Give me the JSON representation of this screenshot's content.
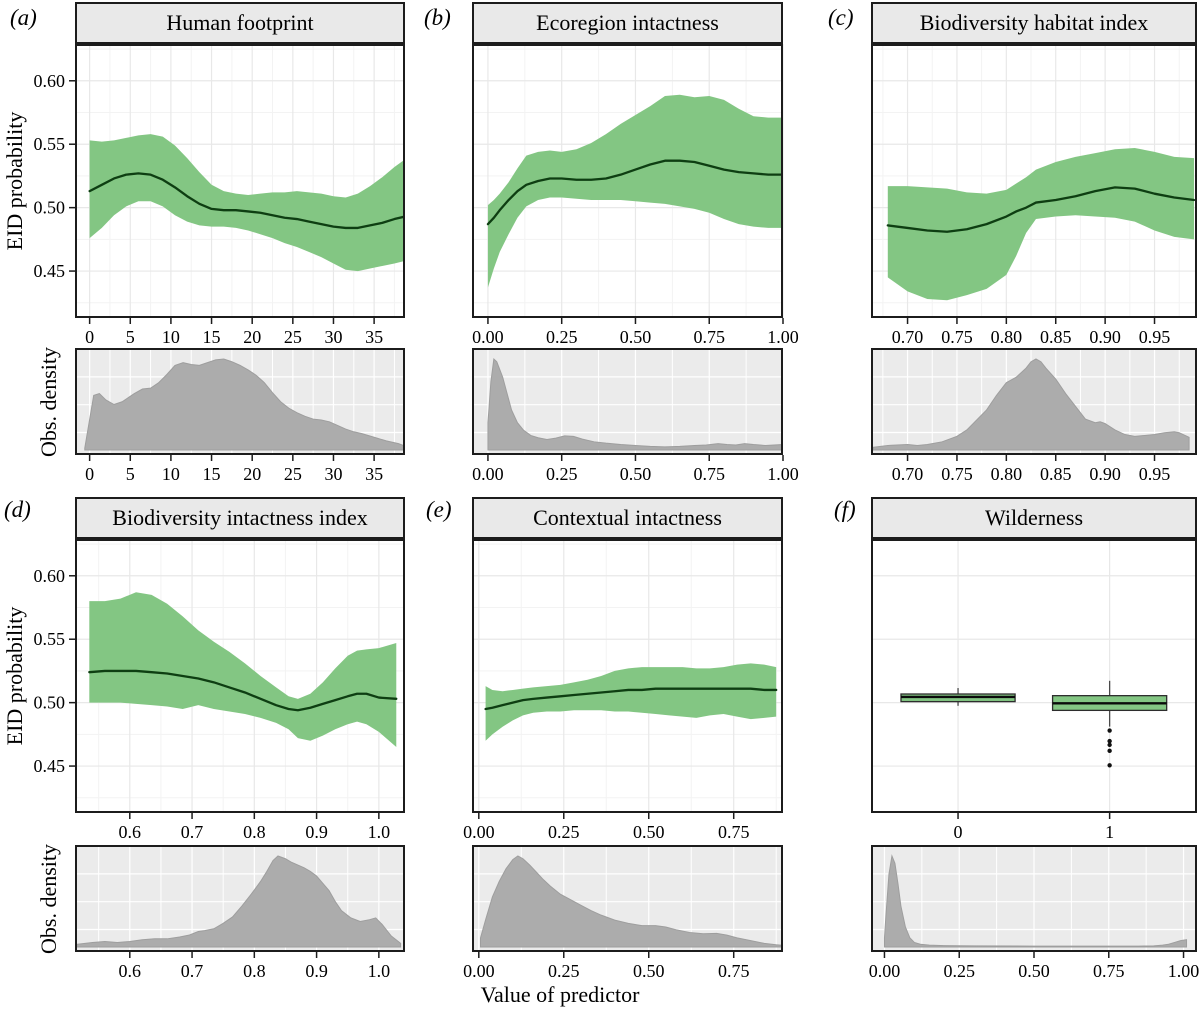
{
  "figure": {
    "xlabel": "Value of predictor",
    "ylabel_main": "EID probability",
    "ylabel_density": "Obs. density",
    "ylim": [
      0.413,
      0.629
    ],
    "yticks": [
      0.45,
      0.5,
      0.55,
      0.6
    ],
    "ytick_labels": [
      "0.45",
      "0.50",
      "0.55",
      "0.60"
    ],
    "colors": {
      "band": "#83c683",
      "line": "#0e3e12",
      "density_fill": "#acacac",
      "density_edge": "#9e9e9e",
      "density_bg": "#ebebeb",
      "grid_major": "#e8e8e8",
      "grid_minor": "#f3f3f3",
      "density_grid": "#ffffff",
      "border": "#1c1c1c",
      "strip_bg": "#e9e9e9",
      "tick": "#1c1c1c"
    }
  },
  "chart_data": [
    {
      "letter": "(a)",
      "title": "Human footprint",
      "type": "line",
      "xlim": [
        -1.8,
        38.8
      ],
      "xticks": [
        0,
        5,
        10,
        15,
        20,
        25,
        30,
        35
      ],
      "xtick_labels": [
        "0",
        "5",
        "10",
        "15",
        "20",
        "25",
        "30",
        "35"
      ],
      "smooth": {
        "x": [
          0,
          1.5,
          3,
          4.5,
          6,
          7.5,
          9,
          10.5,
          12,
          13.5,
          15,
          16.5,
          18,
          19.5,
          21,
          22.5,
          24,
          25.5,
          27,
          28.5,
          30,
          31.5,
          33,
          34.5,
          36,
          37.5,
          38.8
        ],
        "y": [
          0.513,
          0.518,
          0.523,
          0.526,
          0.527,
          0.526,
          0.522,
          0.516,
          0.509,
          0.503,
          0.499,
          0.498,
          0.498,
          0.497,
          0.496,
          0.494,
          0.492,
          0.491,
          0.489,
          0.487,
          0.485,
          0.484,
          0.484,
          0.486,
          0.488,
          0.491,
          0.493
        ],
        "lo": [
          0.476,
          0.484,
          0.494,
          0.501,
          0.505,
          0.505,
          0.501,
          0.494,
          0.489,
          0.486,
          0.485,
          0.485,
          0.484,
          0.482,
          0.479,
          0.476,
          0.472,
          0.469,
          0.465,
          0.461,
          0.456,
          0.451,
          0.45,
          0.452,
          0.454,
          0.456,
          0.458
        ],
        "hi": [
          0.553,
          0.552,
          0.553,
          0.555,
          0.557,
          0.558,
          0.556,
          0.549,
          0.539,
          0.528,
          0.518,
          0.513,
          0.511,
          0.51,
          0.511,
          0.512,
          0.512,
          0.513,
          0.512,
          0.511,
          0.509,
          0.508,
          0.511,
          0.517,
          0.524,
          0.532,
          0.538
        ]
      },
      "density": {
        "x": [
          -0.6,
          0.5,
          1.2,
          2,
          3,
          4,
          5.5,
          6.5,
          7.5,
          8.5,
          9.5,
          10.5,
          11.5,
          12.5,
          13.5,
          14.5,
          15.5,
          16.5,
          17.5,
          18.5,
          19.5,
          20.5,
          21.5,
          22.5,
          23.5,
          24.5,
          25.5,
          26.5,
          27.5,
          28.5,
          29.5,
          30.5,
          31.5,
          32.5,
          33.5,
          35,
          36.5,
          38,
          38.6
        ],
        "v": [
          0.02,
          0.6,
          0.62,
          0.55,
          0.5,
          0.53,
          0.62,
          0.67,
          0.68,
          0.74,
          0.83,
          0.93,
          0.96,
          0.94,
          0.93,
          0.96,
          0.99,
          1.0,
          0.97,
          0.93,
          0.88,
          0.82,
          0.74,
          0.63,
          0.53,
          0.46,
          0.41,
          0.37,
          0.34,
          0.33,
          0.31,
          0.27,
          0.23,
          0.2,
          0.18,
          0.14,
          0.1,
          0.07,
          0.05
        ]
      }
    },
    {
      "letter": "(b)",
      "title": "Ecoregion intactness",
      "type": "line",
      "xlim": [
        -0.054,
        1.0
      ],
      "xticks": [
        0,
        0.25,
        0.5,
        0.75,
        1.0
      ],
      "xtick_labels": [
        "0.00",
        "0.25",
        "0.50",
        "0.75",
        "1.00"
      ],
      "smooth": {
        "x": [
          0,
          0.02,
          0.04,
          0.07,
          0.1,
          0.13,
          0.17,
          0.21,
          0.25,
          0.3,
          0.35,
          0.4,
          0.45,
          0.5,
          0.55,
          0.6,
          0.65,
          0.7,
          0.75,
          0.8,
          0.85,
          0.9,
          0.95,
          1.0
        ],
        "y": [
          0.487,
          0.492,
          0.498,
          0.506,
          0.513,
          0.518,
          0.521,
          0.523,
          0.523,
          0.522,
          0.522,
          0.523,
          0.526,
          0.53,
          0.534,
          0.537,
          0.537,
          0.536,
          0.533,
          0.53,
          0.528,
          0.527,
          0.526,
          0.526
        ],
        "lo": [
          0.437,
          0.452,
          0.465,
          0.479,
          0.492,
          0.501,
          0.506,
          0.508,
          0.508,
          0.507,
          0.506,
          0.506,
          0.506,
          0.505,
          0.504,
          0.503,
          0.501,
          0.499,
          0.496,
          0.491,
          0.487,
          0.485,
          0.484,
          0.484
        ],
        "hi": [
          0.502,
          0.506,
          0.511,
          0.52,
          0.531,
          0.541,
          0.544,
          0.545,
          0.544,
          0.546,
          0.551,
          0.558,
          0.566,
          0.573,
          0.58,
          0.588,
          0.589,
          0.587,
          0.588,
          0.585,
          0.578,
          0.572,
          0.571,
          0.571
        ]
      },
      "density": {
        "x": [
          0.0,
          0.01,
          0.02,
          0.03,
          0.05,
          0.065,
          0.08,
          0.1,
          0.12,
          0.145,
          0.17,
          0.2,
          0.23,
          0.26,
          0.29,
          0.32,
          0.36,
          0.4,
          0.45,
          0.5,
          0.55,
          0.6,
          0.65,
          0.7,
          0.74,
          0.78,
          0.81,
          0.84,
          0.87,
          0.9,
          0.94,
          0.97,
          1.0
        ],
        "v": [
          0.3,
          0.75,
          1.0,
          0.97,
          0.8,
          0.62,
          0.44,
          0.3,
          0.22,
          0.16,
          0.135,
          0.115,
          0.13,
          0.155,
          0.15,
          0.12,
          0.09,
          0.075,
          0.06,
          0.05,
          0.04,
          0.035,
          0.04,
          0.05,
          0.055,
          0.07,
          0.06,
          0.055,
          0.07,
          0.06,
          0.05,
          0.055,
          0.06
        ]
      }
    },
    {
      "letter": "(c)",
      "title": "Biodiversity habitat index",
      "type": "line",
      "xlim": [
        0.663,
        0.993
      ],
      "xticks": [
        0.7,
        0.75,
        0.8,
        0.85,
        0.9,
        0.95
      ],
      "xtick_labels": [
        "0.70",
        "0.75",
        "0.80",
        "0.85",
        "0.90",
        "0.95"
      ],
      "smooth": {
        "x": [
          0.68,
          0.7,
          0.72,
          0.74,
          0.76,
          0.78,
          0.8,
          0.81,
          0.82,
          0.83,
          0.85,
          0.87,
          0.89,
          0.91,
          0.93,
          0.95,
          0.97,
          0.99
        ],
        "y": [
          0.486,
          0.484,
          0.482,
          0.481,
          0.483,
          0.487,
          0.493,
          0.497,
          0.5,
          0.504,
          0.506,
          0.509,
          0.513,
          0.516,
          0.515,
          0.511,
          0.508,
          0.506
        ],
        "lo": [
          0.445,
          0.434,
          0.428,
          0.427,
          0.431,
          0.436,
          0.447,
          0.462,
          0.48,
          0.491,
          0.493,
          0.494,
          0.493,
          0.492,
          0.489,
          0.482,
          0.477,
          0.475
        ],
        "hi": [
          0.517,
          0.517,
          0.516,
          0.515,
          0.512,
          0.511,
          0.514,
          0.519,
          0.524,
          0.53,
          0.536,
          0.54,
          0.543,
          0.546,
          0.547,
          0.544,
          0.54,
          0.539
        ]
      },
      "density": {
        "x": [
          0.665,
          0.68,
          0.7,
          0.71,
          0.72,
          0.735,
          0.75,
          0.76,
          0.77,
          0.78,
          0.79,
          0.8,
          0.81,
          0.82,
          0.825,
          0.83,
          0.835,
          0.84,
          0.85,
          0.86,
          0.87,
          0.88,
          0.89,
          0.895,
          0.9,
          0.91,
          0.92,
          0.93,
          0.94,
          0.95,
          0.96,
          0.97,
          0.975,
          0.985
        ],
        "v": [
          0.03,
          0.05,
          0.06,
          0.05,
          0.06,
          0.09,
          0.15,
          0.22,
          0.33,
          0.44,
          0.6,
          0.74,
          0.8,
          0.9,
          0.97,
          1.0,
          0.97,
          0.9,
          0.78,
          0.62,
          0.48,
          0.34,
          0.3,
          0.31,
          0.29,
          0.22,
          0.17,
          0.15,
          0.16,
          0.17,
          0.19,
          0.2,
          0.19,
          0.14
        ]
      }
    },
    {
      "letter": "(d)",
      "title": "Biodiversity intactness index",
      "type": "line",
      "xlim": [
        0.512,
        1.042
      ],
      "xticks": [
        0.6,
        0.7,
        0.8,
        0.9,
        1.0
      ],
      "xtick_labels": [
        "0.6",
        "0.7",
        "0.8",
        "0.9",
        "1.0"
      ],
      "smooth": {
        "x": [
          0.535,
          0.56,
          0.585,
          0.61,
          0.635,
          0.66,
          0.685,
          0.71,
          0.735,
          0.76,
          0.785,
          0.81,
          0.835,
          0.855,
          0.87,
          0.89,
          0.91,
          0.93,
          0.95,
          0.965,
          0.98,
          1.0,
          1.028
        ],
        "y": [
          0.524,
          0.525,
          0.525,
          0.525,
          0.524,
          0.523,
          0.521,
          0.519,
          0.516,
          0.512,
          0.508,
          0.503,
          0.498,
          0.495,
          0.494,
          0.496,
          0.499,
          0.502,
          0.505,
          0.507,
          0.507,
          0.504,
          0.503
        ],
        "lo": [
          0.5,
          0.5,
          0.5,
          0.499,
          0.498,
          0.497,
          0.495,
          0.498,
          0.495,
          0.493,
          0.491,
          0.488,
          0.484,
          0.479,
          0.472,
          0.47,
          0.474,
          0.479,
          0.483,
          0.485,
          0.483,
          0.477,
          0.465
        ],
        "hi": [
          0.58,
          0.58,
          0.582,
          0.587,
          0.585,
          0.578,
          0.568,
          0.557,
          0.548,
          0.54,
          0.531,
          0.521,
          0.512,
          0.505,
          0.503,
          0.507,
          0.516,
          0.527,
          0.537,
          0.541,
          0.542,
          0.543,
          0.547
        ]
      },
      "density": {
        "x": [
          0.515,
          0.54,
          0.56,
          0.58,
          0.6,
          0.62,
          0.64,
          0.66,
          0.68,
          0.695,
          0.71,
          0.72,
          0.735,
          0.75,
          0.765,
          0.78,
          0.795,
          0.81,
          0.82,
          0.83,
          0.838,
          0.85,
          0.86,
          0.87,
          0.88,
          0.89,
          0.9,
          0.91,
          0.92,
          0.93,
          0.94,
          0.955,
          0.97,
          0.985,
          0.995,
          1.005,
          1.02,
          1.035
        ],
        "v": [
          0.03,
          0.05,
          0.06,
          0.05,
          0.06,
          0.08,
          0.09,
          0.09,
          0.11,
          0.13,
          0.17,
          0.18,
          0.2,
          0.26,
          0.33,
          0.45,
          0.58,
          0.72,
          0.83,
          0.95,
          1.0,
          0.97,
          0.93,
          0.9,
          0.87,
          0.83,
          0.78,
          0.7,
          0.62,
          0.5,
          0.4,
          0.32,
          0.28,
          0.3,
          0.32,
          0.25,
          0.12,
          0.04
        ]
      }
    },
    {
      "letter": "(e)",
      "title": "Contextual intactness",
      "type": "line",
      "xlim": [
        -0.02,
        0.895
      ],
      "xticks": [
        0,
        0.25,
        0.5,
        0.75
      ],
      "xtick_labels": [
        "0.00",
        "0.25",
        "0.50",
        "0.75"
      ],
      "smooth": {
        "x": [
          0.02,
          0.04,
          0.07,
          0.1,
          0.13,
          0.16,
          0.2,
          0.24,
          0.28,
          0.32,
          0.36,
          0.4,
          0.44,
          0.48,
          0.52,
          0.56,
          0.6,
          0.64,
          0.68,
          0.72,
          0.76,
          0.8,
          0.84,
          0.875
        ],
        "y": [
          0.495,
          0.496,
          0.498,
          0.5,
          0.502,
          0.503,
          0.504,
          0.505,
          0.506,
          0.507,
          0.508,
          0.509,
          0.51,
          0.51,
          0.511,
          0.511,
          0.511,
          0.511,
          0.511,
          0.511,
          0.511,
          0.511,
          0.51,
          0.51
        ],
        "lo": [
          0.47,
          0.475,
          0.481,
          0.486,
          0.49,
          0.492,
          0.493,
          0.493,
          0.494,
          0.494,
          0.494,
          0.493,
          0.493,
          0.492,
          0.491,
          0.49,
          0.489,
          0.488,
          0.49,
          0.491,
          0.489,
          0.487,
          0.488,
          0.489
        ],
        "hi": [
          0.513,
          0.51,
          0.509,
          0.51,
          0.511,
          0.512,
          0.513,
          0.514,
          0.516,
          0.518,
          0.521,
          0.525,
          0.527,
          0.528,
          0.528,
          0.528,
          0.528,
          0.527,
          0.527,
          0.528,
          0.53,
          0.531,
          0.53,
          0.528
        ]
      },
      "density": {
        "x": [
          0.005,
          0.02,
          0.04,
          0.06,
          0.08,
          0.1,
          0.115,
          0.13,
          0.15,
          0.17,
          0.19,
          0.21,
          0.24,
          0.27,
          0.3,
          0.33,
          0.36,
          0.4,
          0.44,
          0.48,
          0.52,
          0.55,
          0.58,
          0.62,
          0.66,
          0.7,
          0.73,
          0.76,
          0.8,
          0.84,
          0.875,
          0.89
        ],
        "v": [
          0.1,
          0.3,
          0.55,
          0.72,
          0.86,
          0.96,
          1.0,
          0.97,
          0.9,
          0.82,
          0.74,
          0.67,
          0.58,
          0.52,
          0.46,
          0.4,
          0.35,
          0.295,
          0.26,
          0.235,
          0.235,
          0.22,
          0.19,
          0.16,
          0.145,
          0.15,
          0.13,
          0.1,
          0.07,
          0.04,
          0.025,
          0.02
        ]
      }
    },
    {
      "letter": "(f)",
      "title": "Wilderness",
      "type": "box",
      "xlim": [
        0,
        1
      ],
      "xticks": [
        0.267,
        0.732
      ],
      "xtick_labels": [
        "0",
        "1"
      ],
      "boxes": [
        {
          "x": 0.267,
          "halfwidth": 0.175,
          "q1": 0.5008,
          "median": 0.5045,
          "q3": 0.5068,
          "whisker_lo": 0.4975,
          "whisker_hi": 0.5115,
          "outliers": []
        },
        {
          "x": 0.732,
          "halfwidth": 0.175,
          "q1": 0.4939,
          "median": 0.4995,
          "q3": 0.5055,
          "whisker_lo": 0.4811,
          "whisker_hi": 0.5172,
          "outliers": [
            0.478,
            0.4697,
            0.4667,
            0.462,
            0.4506
          ]
        }
      ],
      "density_xlim": [
        -0.045,
        1.045
      ],
      "density_xticks": [
        0,
        0.25,
        0.5,
        0.75,
        1.0
      ],
      "density_xtick_labels": [
        "0.00",
        "0.25",
        "0.50",
        "0.75",
        "1.00"
      ],
      "density": {
        "x": [
          0.0,
          0.005,
          0.015,
          0.025,
          0.035,
          0.045,
          0.055,
          0.07,
          0.085,
          0.1,
          0.12,
          0.15,
          0.2,
          0.3,
          0.5,
          0.7,
          0.85,
          0.9,
          0.93,
          0.95,
          0.97,
          0.99,
          1.01
        ],
        "v": [
          0.1,
          0.35,
          0.8,
          1.0,
          0.92,
          0.7,
          0.45,
          0.22,
          0.1,
          0.05,
          0.03,
          0.02,
          0.015,
          0.012,
          0.01,
          0.01,
          0.01,
          0.012,
          0.02,
          0.03,
          0.05,
          0.07,
          0.08
        ]
      }
    }
  ]
}
